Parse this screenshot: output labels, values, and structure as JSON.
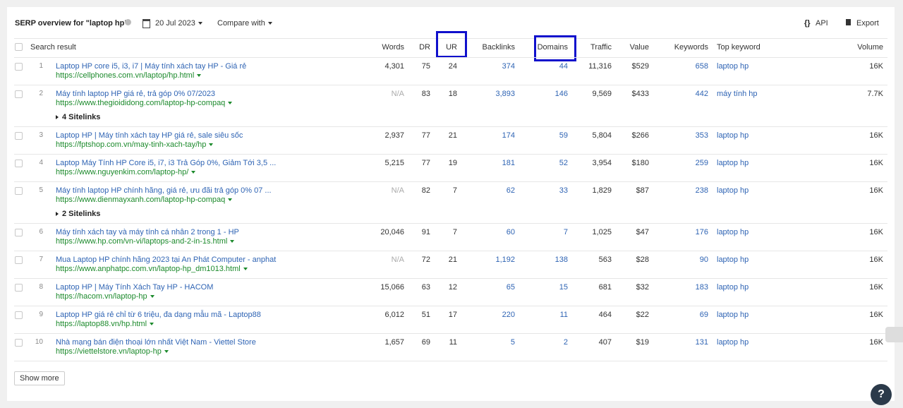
{
  "header": {
    "title": "SERP overview for \"laptop hp\"",
    "date": "20 Jul 2023",
    "compare": "Compare with",
    "api": "API",
    "export": "Export"
  },
  "columns": [
    "Search result",
    "Words",
    "DR",
    "UR",
    "Backlinks",
    "Domains",
    "Traffic",
    "Value",
    "Keywords",
    "Top keyword",
    "Volume"
  ],
  "rows": [
    {
      "num": "1",
      "title": "Laptop HP core i5, i3, i7 | Máy tính xách tay HP - Giá rẻ",
      "url": "https://cellphones.com.vn/laptop/hp.html",
      "words": "4,301",
      "dr": "75",
      "ur": "24",
      "backlinks": "374",
      "domains": "44",
      "traffic": "11,316",
      "value": "$529",
      "keywords": "658",
      "top_keyword": "laptop hp",
      "volume": "16K"
    },
    {
      "num": "2",
      "title": "Máy tính laptop HP giá rẻ, trả góp 0% 07/2023",
      "url": "https://www.thegioididong.com/laptop-hp-compaq",
      "words": "N/A",
      "dr": "83",
      "ur": "18",
      "backlinks": "3,893",
      "domains": "146",
      "traffic": "9,569",
      "value": "$433",
      "keywords": "442",
      "top_keyword": "máy tính hp",
      "volume": "7.7K",
      "sitelinks": "4 Sitelinks"
    },
    {
      "num": "3",
      "title": "Laptop HP | Máy tính xách tay HP giá rẻ, sale siêu sốc",
      "url": "https://fptshop.com.vn/may-tinh-xach-tay/hp",
      "words": "2,937",
      "dr": "77",
      "ur": "21",
      "backlinks": "174",
      "domains": "59",
      "traffic": "5,804",
      "value": "$266",
      "keywords": "353",
      "top_keyword": "laptop hp",
      "volume": "16K"
    },
    {
      "num": "4",
      "title": "Laptop Máy Tính HP Core i5, i7, i3 Trả Góp 0%, Giảm Tới 3,5 ...",
      "url": "https://www.nguyenkim.com/laptop-hp/",
      "words": "5,215",
      "dr": "77",
      "ur": "19",
      "backlinks": "181",
      "domains": "52",
      "traffic": "3,954",
      "value": "$180",
      "keywords": "259",
      "top_keyword": "laptop hp",
      "volume": "16K"
    },
    {
      "num": "5",
      "title": "Máy tính laptop HP chính hãng, giá rẻ, ưu đãi trả góp 0% 07 ...",
      "url": "https://www.dienmayxanh.com/laptop-hp-compaq",
      "words": "N/A",
      "dr": "82",
      "ur": "7",
      "backlinks": "62",
      "domains": "33",
      "traffic": "1,829",
      "value": "$87",
      "keywords": "238",
      "top_keyword": "laptop hp",
      "volume": "16K",
      "sitelinks": "2 Sitelinks"
    },
    {
      "num": "6",
      "title": "Máy tính xách tay và máy tính cá nhân 2 trong 1 - HP",
      "url": "https://www.hp.com/vn-vi/laptops-and-2-in-1s.html",
      "words": "20,046",
      "dr": "91",
      "ur": "7",
      "backlinks": "60",
      "domains": "7",
      "traffic": "1,025",
      "value": "$47",
      "keywords": "176",
      "top_keyword": "laptop hp",
      "volume": "16K"
    },
    {
      "num": "7",
      "title": "Mua Laptop HP chính hãng 2023 tại An Phát Computer - anphat",
      "url": "https://www.anphatpc.com.vn/laptop-hp_dm1013.html",
      "words": "N/A",
      "dr": "72",
      "ur": "21",
      "backlinks": "1,192",
      "domains": "138",
      "traffic": "563",
      "value": "$28",
      "keywords": "90",
      "top_keyword": "laptop hp",
      "volume": "16K"
    },
    {
      "num": "8",
      "title": "Laptop HP | Máy Tính Xách Tay HP - HACOM",
      "url": "https://hacom.vn/laptop-hp",
      "words": "15,066",
      "dr": "63",
      "ur": "12",
      "backlinks": "65",
      "domains": "15",
      "traffic": "681",
      "value": "$32",
      "keywords": "183",
      "top_keyword": "laptop hp",
      "volume": "16K"
    },
    {
      "num": "9",
      "title": "Laptop HP giá rẻ chỉ từ 6 triệu, đa dạng mẫu mã - Laptop88",
      "url": "https://laptop88.vn/hp.html",
      "words": "6,012",
      "dr": "51",
      "ur": "17",
      "backlinks": "220",
      "domains": "11",
      "traffic": "464",
      "value": "$22",
      "keywords": "69",
      "top_keyword": "laptop hp",
      "volume": "16K"
    },
    {
      "num": "10",
      "title": "Nhà mạng bán điện thoại lớn nhất Việt Nam - Viettel Store",
      "url": "https://viettelstore.vn/laptop-hp",
      "words": "1,657",
      "dr": "69",
      "ur": "11",
      "backlinks": "5",
      "domains": "2",
      "traffic": "407",
      "value": "$19",
      "keywords": "131",
      "top_keyword": "laptop hp",
      "volume": "16K"
    }
  ],
  "show_more": "Show more",
  "help": "?"
}
